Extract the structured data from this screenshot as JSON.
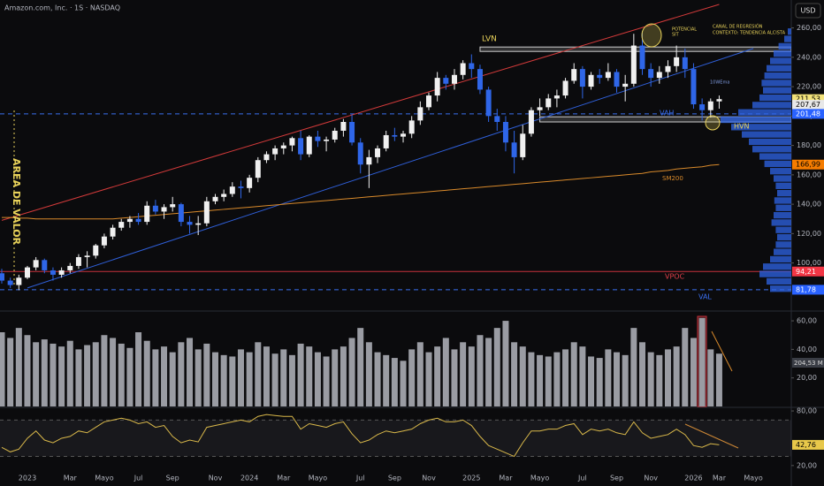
{
  "header": {
    "title": "Amazon.com, Inc. · 1S · NASDAQ",
    "currency": "USD"
  },
  "chart_data": [
    {
      "type": "candlestick",
      "categories": [
        null,
        null,
        null,
        "2023",
        null,
        null,
        null,
        null,
        "Mar",
        null,
        null,
        null,
        "Mayo",
        null,
        null,
        null,
        "Jul",
        null,
        null,
        null,
        "Sep",
        null,
        null,
        null,
        null,
        "Nov",
        null,
        null,
        null,
        "2024",
        null,
        null,
        null,
        "Mar",
        null,
        null,
        null,
        "Mayo",
        null,
        null,
        null,
        null,
        "Jul",
        null,
        null,
        null,
        "Sep",
        null,
        null,
        null,
        "Nov",
        null,
        null,
        null,
        null,
        "2025",
        null,
        null,
        null,
        "Mar",
        null,
        null,
        null,
        "Mayo",
        null,
        null,
        null,
        null,
        "Jul",
        null,
        null,
        null,
        "Sep",
        null,
        null,
        null,
        "Nov",
        null,
        null,
        null,
        null,
        "2026",
        null,
        null,
        "Mar",
        null,
        null,
        null,
        "Mayo"
      ],
      "open": [
        93,
        88,
        85,
        90,
        97,
        102,
        95,
        92,
        95,
        98,
        104,
        105,
        112,
        118,
        124,
        128,
        130,
        128,
        139,
        135,
        138,
        140,
        128,
        126,
        127,
        142,
        145,
        147,
        152,
        151,
        158,
        170,
        174,
        178,
        180,
        185,
        174,
        186,
        183,
        184,
        190,
        196,
        182,
        167,
        172,
        178,
        187,
        186,
        188,
        197,
        206,
        214,
        226,
        222,
        228,
        236,
        232,
        218,
        200,
        196,
        182,
        172,
        188,
        204,
        206,
        212,
        214,
        224,
        232,
        220,
        228,
        226,
        230,
        220,
        222,
        248,
        232,
        226,
        230,
        234,
        240,
        232,
        208,
        204,
        210,
        null,
        null,
        null,
        null
      ],
      "high": [
        96,
        90,
        92,
        98,
        104,
        103,
        97,
        97,
        100,
        106,
        108,
        113,
        120,
        126,
        130,
        132,
        134,
        142,
        143,
        140,
        145,
        141,
        132,
        132,
        145,
        147,
        150,
        155,
        156,
        160,
        172,
        176,
        180,
        182,
        186,
        190,
        187,
        190,
        186,
        192,
        198,
        201,
        185,
        177,
        180,
        190,
        192,
        190,
        200,
        210,
        216,
        230,
        228,
        232,
        238,
        242,
        235,
        220,
        205,
        200,
        190,
        194,
        206,
        212,
        215,
        218,
        226,
        236,
        234,
        230,
        232,
        236,
        232,
        228,
        256,
        258,
        236,
        234,
        238,
        248,
        246,
        236,
        212,
        212,
        214,
        null,
        null,
        null,
        null
      ],
      "low": [
        86,
        83,
        81.5,
        89,
        95,
        93,
        88,
        90,
        93,
        96,
        97,
        103,
        110,
        116,
        122,
        124,
        126,
        126,
        133,
        130,
        135,
        125,
        120,
        119,
        125,
        140,
        142,
        145,
        144,
        148,
        155,
        168,
        170,
        174,
        176,
        170,
        172,
        179,
        176,
        182,
        186,
        180,
        161,
        151,
        168,
        176,
        183,
        182,
        185,
        194,
        204,
        210,
        218,
        218,
        225,
        226,
        215,
        196,
        190,
        176,
        161,
        170,
        186,
        200,
        204,
        206,
        212,
        222,
        212,
        218,
        222,
        224,
        216,
        210,
        220,
        228,
        220,
        222,
        226,
        230,
        226,
        205,
        197,
        199,
        205,
        null,
        null,
        null,
        null
      ],
      "close": [
        88,
        85,
        90,
        97,
        102,
        95,
        92,
        95,
        98,
        104,
        105,
        112,
        118,
        124,
        128,
        130,
        128,
        139,
        135,
        138,
        140,
        128,
        126,
        127,
        142,
        145,
        147,
        152,
        151,
        158,
        170,
        174,
        178,
        180,
        185,
        174,
        186,
        183,
        184,
        190,
        196,
        182,
        167,
        172,
        178,
        187,
        186,
        188,
        197,
        206,
        214,
        226,
        222,
        228,
        236,
        232,
        218,
        200,
        196,
        182,
        172,
        188,
        204,
        206,
        212,
        214,
        224,
        232,
        220,
        228,
        226,
        230,
        220,
        222,
        248,
        232,
        226,
        230,
        234,
        240,
        232,
        208,
        204,
        210,
        211.53,
        null,
        null,
        null,
        null
      ],
      "colors": {
        "up": "#f0f0f0",
        "down": "#2f66e8"
      },
      "ylim": [
        68.5,
        279
      ],
      "yticks": [
        {
          "value": 100,
          "label": "100,00"
        },
        {
          "value": 120,
          "label": "120,00"
        },
        {
          "value": 140,
          "label": "140,00"
        },
        {
          "value": 160,
          "label": "160,00"
        },
        {
          "value": 180,
          "label": "180,00"
        },
        {
          "value": 200,
          "label": "200,00"
        },
        {
          "value": 220,
          "label": "220,00"
        },
        {
          "value": 240,
          "label": "240,00"
        },
        {
          "value": 260,
          "label": "260,00"
        }
      ],
      "overlays": [
        {
          "color": "#d98a2b",
          "values": [
            131,
            131,
            130.5,
            130.5,
            130,
            130,
            130,
            130,
            130,
            130,
            130,
            130,
            130,
            130,
            130.5,
            131,
            131.5,
            132,
            132.5,
            133,
            133.5,
            134,
            134.5,
            135,
            135.5,
            136,
            136.5,
            137,
            137.5,
            138,
            138.5,
            139,
            139.5,
            140,
            140.5,
            141,
            141.5,
            142,
            142.5,
            143,
            143.5,
            144,
            144.5,
            145,
            145.5,
            146,
            146.5,
            147,
            147.5,
            148,
            148.5,
            149,
            149.5,
            150,
            150.5,
            151,
            151.5,
            152,
            152.5,
            153,
            153.5,
            154,
            154.5,
            155,
            155.5,
            156,
            156.5,
            157,
            157.5,
            158,
            158.5,
            159,
            159.5,
            160,
            160.5,
            161,
            162,
            162.5,
            163,
            164,
            164.5,
            165,
            165.5,
            166.5,
            166.99,
            null,
            null,
            null,
            null
          ]
        }
      ],
      "trendlines": [
        {
          "color": "#d23a3a",
          "x": [
            0,
            84
          ],
          "values": [
            129,
            276
          ]
        },
        {
          "color": "#2f5fd8",
          "x": [
            3,
            88
          ],
          "values": [
            83,
            246
          ]
        }
      ],
      "zones": [
        {
          "from": 244,
          "to": 247,
          "start": 56
        },
        {
          "from": 196,
          "to": 199.5,
          "start": 63
        }
      ],
      "levels": [
        {
          "value": 201.48,
          "color": "#3a6ff0",
          "style": "dashed"
        },
        {
          "value": 94.21,
          "color": "#c8323c",
          "style": "solid"
        },
        {
          "value": 81.78,
          "color": "#3a6ff0",
          "style": "dashed"
        }
      ],
      "price_labels": [
        {
          "value": 211.53,
          "label": "211,53",
          "color": "#f2e27a",
          "text_color": "#000000"
        },
        {
          "value": 207.67,
          "label": "207,67",
          "color": "#e8e8e8",
          "text_color": "#000000"
        },
        {
          "value": 201.48,
          "label": "201,48",
          "color": "#2962ff",
          "text_color": "#ffffff"
        },
        {
          "value": 166.99,
          "label": "166,99",
          "color": "#f57c00",
          "text_color": "#000000"
        },
        {
          "value": 94.21,
          "label": "94,21",
          "color": "#f23645",
          "text_color": "#ffffff"
        },
        {
          "value": 81.78,
          "label": "81,78",
          "color": "#2962ff",
          "text_color": "#ffffff"
        }
      ],
      "volume_profile": {
        "color": "#2f66e8",
        "bins": [
          80,
          85,
          90,
          95,
          100,
          105,
          110,
          115,
          120,
          125,
          130,
          135,
          140,
          145,
          150,
          155,
          160,
          165,
          170,
          175,
          180,
          185,
          190,
          195,
          200,
          205,
          210,
          215,
          220,
          225,
          230,
          235,
          240,
          245,
          250,
          255,
          260
        ],
        "values": [
          30,
          35,
          45,
          40,
          30,
          25,
          22,
          20,
          22,
          28,
          25,
          22,
          24,
          20,
          22,
          25,
          30,
          38,
          45,
          55,
          60,
          70,
          85,
          100,
          75,
          55,
          45,
          40,
          42,
          38,
          35,
          30,
          25,
          18,
          10,
          5
        ]
      },
      "annotations": {
        "lvn": "LVN",
        "potential_1": "POTENCIAL",
        "potential_2": "SIT",
        "channel": "CANAL DE REGRESIÓN",
        "context": "CONTEXTO: TENDENCIA ALCISTA",
        "ema": "10WEma",
        "vah": "VAH",
        "hvn": "HVN",
        "sm200": "SM200",
        "vpoc": "VPOC",
        "val": "VAL",
        "area": "AREA DE VALOR"
      }
    },
    {
      "type": "bar",
      "values": [
        52,
        48,
        55,
        50,
        45,
        47,
        44,
        42,
        46,
        40,
        43,
        45,
        50,
        48,
        44,
        41,
        52,
        46,
        40,
        42,
        38,
        45,
        48,
        40,
        44,
        38,
        36,
        35,
        40,
        38,
        45,
        42,
        37,
        40,
        36,
        44,
        42,
        38,
        35,
        40,
        42,
        48,
        55,
        45,
        38,
        36,
        34,
        32,
        40,
        45,
        38,
        42,
        48,
        40,
        45,
        42,
        50,
        48,
        55,
        60,
        45,
        42,
        38,
        36,
        35,
        38,
        40,
        45,
        42,
        35,
        34,
        40,
        38,
        36,
        55,
        45,
        38,
        36,
        40,
        42,
        55,
        48,
        62,
        40,
        37,
        null,
        null,
        null,
        null
      ],
      "color": "#9a9ca3",
      "ylim": [
        0,
        65
      ],
      "yticks": [
        {
          "value": 20,
          "label": "20,00"
        },
        {
          "value": 40,
          "label": "40,00"
        },
        {
          "value": 60,
          "label": "60,00"
        }
      ],
      "annotation": "204,53 M"
    },
    {
      "type": "line",
      "values": [
        40,
        35,
        38,
        50,
        58,
        48,
        45,
        50,
        52,
        58,
        56,
        62,
        68,
        70,
        72,
        70,
        66,
        68,
        62,
        64,
        52,
        45,
        48,
        46,
        62,
        64,
        66,
        68,
        70,
        68,
        74,
        76,
        75,
        74,
        74,
        60,
        66,
        64,
        62,
        66,
        68,
        55,
        45,
        48,
        54,
        58,
        56,
        58,
        60,
        66,
        70,
        72,
        68,
        68,
        70,
        64,
        52,
        42,
        38,
        34,
        30,
        45,
        58,
        58,
        60,
        60,
        64,
        66,
        54,
        60,
        58,
        60,
        56,
        54,
        68,
        56,
        50,
        52,
        54,
        60,
        54,
        42,
        40,
        44,
        42.76,
        null,
        null,
        null,
        null
      ],
      "color": "#d9b84a",
      "ylim": [
        15,
        82
      ],
      "yticks": [
        {
          "value": 20,
          "label": "20,00"
        },
        {
          "value": 80,
          "label": "80,00"
        }
      ],
      "band": [
        30,
        70
      ],
      "price_labels": [
        {
          "value": 42.76,
          "label": "42,76",
          "color": "#e8c84a",
          "text_color": "#000000"
        }
      ]
    }
  ]
}
